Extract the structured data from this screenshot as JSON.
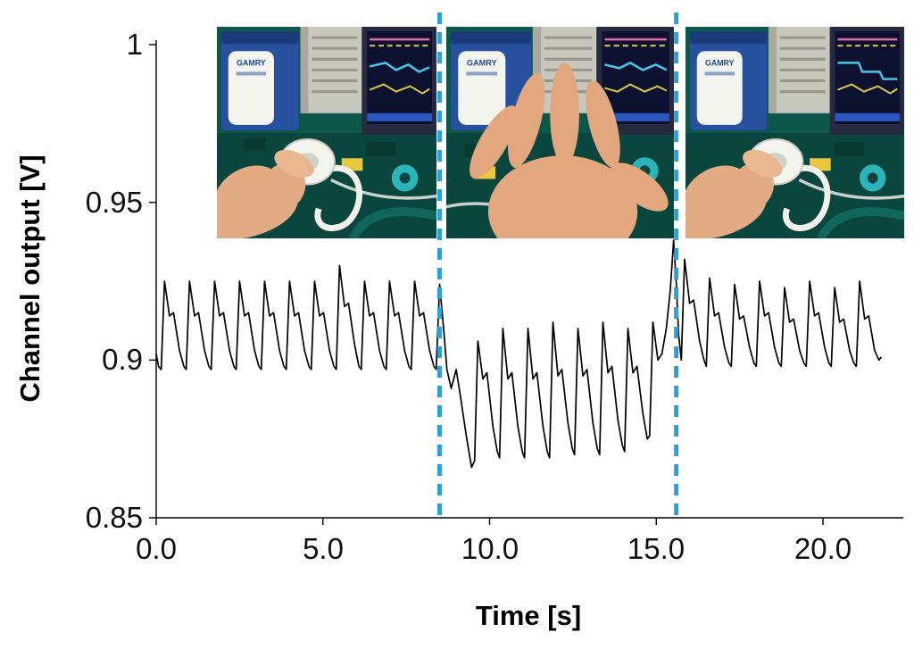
{
  "figure": {
    "y_axis_label": "Channel output [V]",
    "x_axis_label": "Time [s]",
    "y_ticks": [
      "1",
      "0.95",
      "0.9",
      "0.85"
    ],
    "x_ticks": [
      "0.0",
      "5.0",
      "10.0",
      "15.0",
      "20.0"
    ],
    "event_marker_color": "#2f9fd8",
    "insets": [
      {
        "name": "photo-hand-holding-sensor",
        "device_label": "GAMRY"
      },
      {
        "name": "photo-hand-waving-over-sensor",
        "device_label": "GAMRY"
      },
      {
        "name": "photo-hand-holding-sensor-again",
        "device_label": "GAMRY"
      }
    ]
  },
  "chart_data": {
    "type": "line",
    "title": "",
    "xlabel": "Time [s]",
    "ylabel": "Channel output [V]",
    "xlim": [
      0,
      22
    ],
    "ylim": [
      0.85,
      1.0
    ],
    "x_tick_values": [
      0,
      5,
      10,
      15,
      20
    ],
    "y_tick_values": [
      0.85,
      0.9,
      0.95,
      1
    ],
    "grid": false,
    "legend": false,
    "annotations": {
      "dashed_vlines": [
        8.5,
        15.6
      ]
    },
    "series": [
      {
        "name": "channel-output",
        "color": "#000000",
        "points": [
          [
            0.0,
            0.902
          ],
          [
            0.07,
            0.898
          ],
          [
            0.15,
            0.897
          ],
          [
            0.25,
            0.925
          ],
          [
            0.4,
            0.914
          ],
          [
            0.52,
            0.915
          ],
          [
            0.7,
            0.903
          ],
          [
            0.83,
            0.898
          ],
          [
            0.9,
            0.897
          ],
          [
            1.0,
            0.925
          ],
          [
            1.15,
            0.914
          ],
          [
            1.27,
            0.915
          ],
          [
            1.45,
            0.903
          ],
          [
            1.58,
            0.898
          ],
          [
            1.65,
            0.897
          ],
          [
            1.75,
            0.925
          ],
          [
            1.9,
            0.914
          ],
          [
            2.02,
            0.915
          ],
          [
            2.2,
            0.903
          ],
          [
            2.33,
            0.898
          ],
          [
            2.4,
            0.897
          ],
          [
            2.5,
            0.925
          ],
          [
            2.65,
            0.914
          ],
          [
            2.77,
            0.915
          ],
          [
            2.95,
            0.903
          ],
          [
            3.08,
            0.898
          ],
          [
            3.15,
            0.897
          ],
          [
            3.25,
            0.925
          ],
          [
            3.4,
            0.914
          ],
          [
            3.52,
            0.915
          ],
          [
            3.7,
            0.903
          ],
          [
            3.83,
            0.898
          ],
          [
            3.9,
            0.897
          ],
          [
            4.0,
            0.925
          ],
          [
            4.15,
            0.914
          ],
          [
            4.27,
            0.915
          ],
          [
            4.45,
            0.903
          ],
          [
            4.58,
            0.898
          ],
          [
            4.65,
            0.897
          ],
          [
            4.75,
            0.925
          ],
          [
            4.9,
            0.914
          ],
          [
            5.02,
            0.915
          ],
          [
            5.2,
            0.903
          ],
          [
            5.33,
            0.898
          ],
          [
            5.4,
            0.897
          ],
          [
            5.5,
            0.93
          ],
          [
            5.65,
            0.917
          ],
          [
            5.77,
            0.918
          ],
          [
            5.95,
            0.905
          ],
          [
            6.08,
            0.898
          ],
          [
            6.15,
            0.897
          ],
          [
            6.25,
            0.925
          ],
          [
            6.4,
            0.914
          ],
          [
            6.52,
            0.915
          ],
          [
            6.7,
            0.903
          ],
          [
            6.83,
            0.898
          ],
          [
            6.9,
            0.897
          ],
          [
            7.0,
            0.925
          ],
          [
            7.15,
            0.914
          ],
          [
            7.27,
            0.915
          ],
          [
            7.45,
            0.903
          ],
          [
            7.58,
            0.898
          ],
          [
            7.65,
            0.897
          ],
          [
            7.75,
            0.925
          ],
          [
            7.9,
            0.914
          ],
          [
            8.02,
            0.915
          ],
          [
            8.2,
            0.903
          ],
          [
            8.33,
            0.898
          ],
          [
            8.4,
            0.897
          ],
          [
            8.5,
            0.924
          ],
          [
            8.62,
            0.91
          ],
          [
            8.72,
            0.897
          ],
          [
            8.85,
            0.891
          ],
          [
            9.0,
            0.897
          ],
          [
            9.12,
            0.889
          ],
          [
            9.3,
            0.876
          ],
          [
            9.46,
            0.866
          ],
          [
            9.55,
            0.868
          ],
          [
            9.65,
            0.906
          ],
          [
            9.8,
            0.894
          ],
          [
            9.92,
            0.896
          ],
          [
            10.1,
            0.879
          ],
          [
            10.23,
            0.871
          ],
          [
            10.3,
            0.869
          ],
          [
            10.4,
            0.91
          ],
          [
            10.55,
            0.894
          ],
          [
            10.67,
            0.896
          ],
          [
            10.85,
            0.879
          ],
          [
            10.98,
            0.871
          ],
          [
            11.05,
            0.869
          ],
          [
            11.15,
            0.91
          ],
          [
            11.3,
            0.894
          ],
          [
            11.42,
            0.896
          ],
          [
            11.6,
            0.879
          ],
          [
            11.73,
            0.871
          ],
          [
            11.8,
            0.869
          ],
          [
            11.9,
            0.912
          ],
          [
            12.05,
            0.895
          ],
          [
            12.17,
            0.897
          ],
          [
            12.35,
            0.88
          ],
          [
            12.48,
            0.872
          ],
          [
            12.55,
            0.87
          ],
          [
            12.65,
            0.91
          ],
          [
            12.8,
            0.895
          ],
          [
            12.92,
            0.897
          ],
          [
            13.1,
            0.88
          ],
          [
            13.23,
            0.872
          ],
          [
            13.3,
            0.87
          ],
          [
            13.4,
            0.912
          ],
          [
            13.55,
            0.896
          ],
          [
            13.67,
            0.898
          ],
          [
            13.85,
            0.881
          ],
          [
            13.98,
            0.873
          ],
          [
            14.05,
            0.871
          ],
          [
            14.15,
            0.91
          ],
          [
            14.3,
            0.896
          ],
          [
            14.42,
            0.898
          ],
          [
            14.6,
            0.883
          ],
          [
            14.73,
            0.875
          ],
          [
            14.8,
            0.876
          ],
          [
            14.9,
            0.912
          ],
          [
            15.05,
            0.9
          ],
          [
            15.17,
            0.902
          ],
          [
            15.3,
            0.91
          ],
          [
            15.42,
            0.922
          ],
          [
            15.52,
            0.938
          ],
          [
            15.6,
            0.924
          ],
          [
            15.67,
            0.908
          ],
          [
            15.75,
            0.9
          ],
          [
            15.85,
            0.932
          ],
          [
            16.0,
            0.918
          ],
          [
            16.12,
            0.919
          ],
          [
            16.3,
            0.906
          ],
          [
            16.43,
            0.9
          ],
          [
            16.5,
            0.898
          ],
          [
            16.6,
            0.926
          ],
          [
            16.75,
            0.914
          ],
          [
            16.87,
            0.915
          ],
          [
            17.05,
            0.904
          ],
          [
            17.18,
            0.899
          ],
          [
            17.25,
            0.898
          ],
          [
            17.35,
            0.924
          ],
          [
            17.5,
            0.913
          ],
          [
            17.62,
            0.914
          ],
          [
            17.8,
            0.904
          ],
          [
            17.93,
            0.899
          ],
          [
            18.0,
            0.898
          ],
          [
            18.1,
            0.925
          ],
          [
            18.25,
            0.914
          ],
          [
            18.37,
            0.915
          ],
          [
            18.55,
            0.904
          ],
          [
            18.68,
            0.899
          ],
          [
            18.75,
            0.898
          ],
          [
            18.85,
            0.923
          ],
          [
            19.0,
            0.912
          ],
          [
            19.12,
            0.913
          ],
          [
            19.3,
            0.903
          ],
          [
            19.43,
            0.899
          ],
          [
            19.5,
            0.898
          ],
          [
            19.6,
            0.925
          ],
          [
            19.75,
            0.914
          ],
          [
            19.87,
            0.915
          ],
          [
            20.05,
            0.904
          ],
          [
            20.18,
            0.899
          ],
          [
            20.25,
            0.898
          ],
          [
            20.35,
            0.923
          ],
          [
            20.5,
            0.912
          ],
          [
            20.62,
            0.913
          ],
          [
            20.8,
            0.903
          ],
          [
            20.93,
            0.899
          ],
          [
            21.0,
            0.898
          ],
          [
            21.1,
            0.925
          ],
          [
            21.25,
            0.913
          ],
          [
            21.37,
            0.914
          ],
          [
            21.55,
            0.903
          ],
          [
            21.68,
            0.9
          ],
          [
            21.75,
            0.901
          ]
        ]
      }
    ]
  }
}
